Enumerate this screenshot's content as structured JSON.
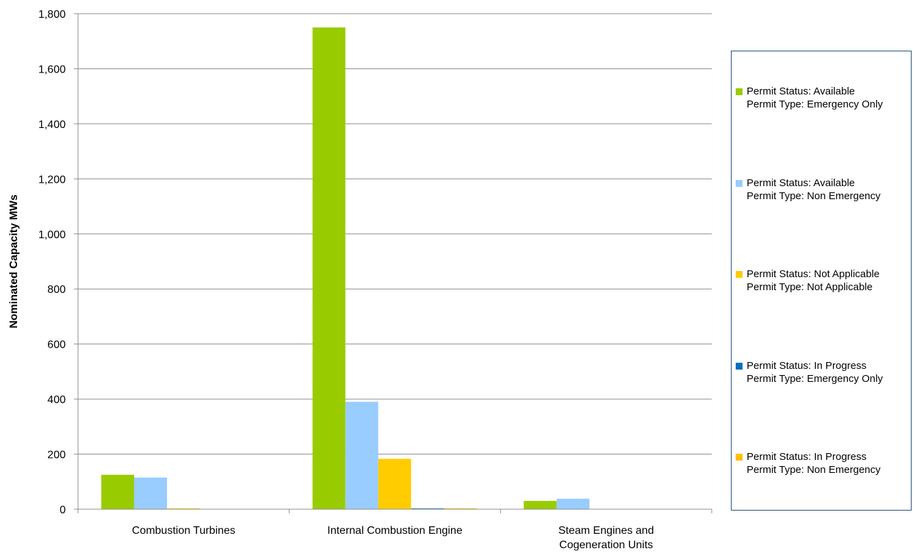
{
  "chart_data": {
    "type": "bar",
    "title": "",
    "xlabel": "",
    "ylabel": "Nominated Capacity MWs",
    "ylim": [
      0,
      1800
    ],
    "yticks": [
      "0",
      "200",
      "400",
      "600",
      "800",
      "1,000",
      "1,200",
      "1,400",
      "1,600",
      "1,800"
    ],
    "grid": "horizontal",
    "legend_position": "right",
    "categories": [
      [
        "Combustion Turbines"
      ],
      [
        "Internal Combustion Engine"
      ],
      [
        "Steam Engines and",
        "Cogeneration Units"
      ]
    ],
    "series": [
      {
        "name_lines": [
          "Permit Status: Available",
          "Permit Type: Emergency Only"
        ],
        "color": "#99cc00",
        "values": [
          125,
          1750,
          30
        ]
      },
      {
        "name_lines": [
          "Permit Status: Available",
          "Permit Type: Non Emergency"
        ],
        "color": "#99ccff",
        "values": [
          115,
          390,
          38
        ]
      },
      {
        "name_lines": [
          "Permit Status: Not Applicable",
          "Permit Type: Not Applicable"
        ],
        "color": "#ffcc00",
        "values": [
          3,
          183,
          0
        ]
      },
      {
        "name_lines": [
          "Permit Status: In Progress",
          "Permit Type: Emergency Only"
        ],
        "color": "#0070c0",
        "values": [
          0,
          3,
          0
        ]
      },
      {
        "name_lines": [
          "Permit Status: In Progress",
          "Permit Type: Non Emergency"
        ],
        "color": "#ffc000",
        "values": [
          0,
          3,
          0
        ]
      }
    ]
  }
}
